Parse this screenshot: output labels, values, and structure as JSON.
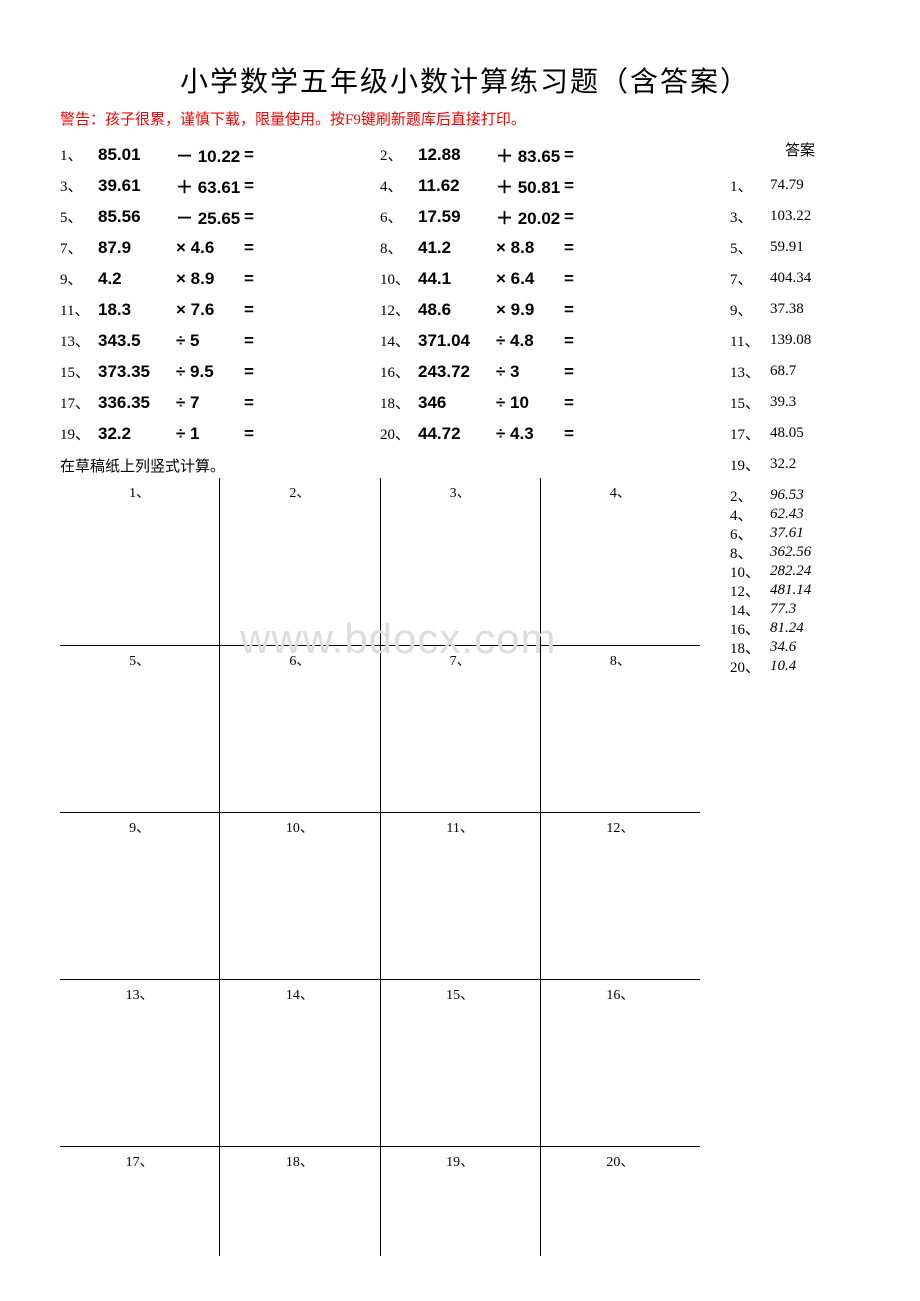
{
  "title": "小学数学五年级小数计算练习题（含答案）",
  "warning": "警告：孩子很累，谨慎下载，限量使用。按F9键刷新题库后直接打印。",
  "answers_title": "答案",
  "scratch_label": "在草稿纸上列竖式计算。",
  "watermark": "www.bdocx.com",
  "problems": [
    {
      "n": "1、",
      "a": "85.01",
      "op": "－ 10.22",
      "n2": "2、",
      "a2": "12.88",
      "op2": "＋ 83.65"
    },
    {
      "n": "3、",
      "a": "39.61",
      "op": "＋ 63.61",
      "n2": "4、",
      "a2": "11.62",
      "op2": "＋ 50.81"
    },
    {
      "n": "5、",
      "a": "85.56",
      "op": "－ 25.65",
      "n2": "6、",
      "a2": "17.59",
      "op2": "＋ 20.02"
    },
    {
      "n": "7、",
      "a": "87.9",
      "op": "× 4.6",
      "n2": "8、",
      "a2": "41.2",
      "op2": "× 8.8"
    },
    {
      "n": "9、",
      "a": "4.2",
      "op": "× 8.9",
      "n2": "10、",
      "a2": "44.1",
      "op2": "× 6.4"
    },
    {
      "n": "11、",
      "a": "18.3",
      "op": "× 7.6",
      "n2": "12、",
      "a2": "48.6",
      "op2": "× 9.9"
    },
    {
      "n": "13、",
      "a": "343.5",
      "op": "÷ 5",
      "n2": "14、",
      "a2": "371.04",
      "op2": "÷ 4.8"
    },
    {
      "n": "15、",
      "a": "373.35",
      "op": "÷ 9.5",
      "n2": "16、",
      "a2": "243.72",
      "op2": "÷ 3"
    },
    {
      "n": "17、",
      "a": "336.35",
      "op": "÷ 7",
      "n2": "18、",
      "a2": "346",
      "op2": "÷ 10"
    },
    {
      "n": "19、",
      "a": "32.2",
      "op": "÷ 1",
      "n2": "20、",
      "a2": "44.72",
      "op2": "÷ 4.3"
    }
  ],
  "answers1": [
    {
      "n": "1、",
      "v": "74.79"
    },
    {
      "n": "3、",
      "v": "103.22"
    },
    {
      "n": "5、",
      "v": "59.91"
    },
    {
      "n": "7、",
      "v": "404.34"
    },
    {
      "n": "9、",
      "v": "37.38"
    },
    {
      "n": "11、",
      "v": "139.08"
    },
    {
      "n": "13、",
      "v": "68.7"
    },
    {
      "n": "15、",
      "v": "39.3"
    },
    {
      "n": "17、",
      "v": "48.05"
    },
    {
      "n": "19、",
      "v": "32.2"
    }
  ],
  "answers2": [
    {
      "n": "2、",
      "v": "96.53"
    },
    {
      "n": "4、",
      "v": "62.43"
    },
    {
      "n": "6、",
      "v": "37.61"
    },
    {
      "n": "8、",
      "v": "362.56"
    },
    {
      "n": "10、",
      "v": "282.24"
    },
    {
      "n": "12、",
      "v": "481.14"
    },
    {
      "n": "14、",
      "v": "77.3"
    },
    {
      "n": "16、",
      "v": "81.24"
    },
    {
      "n": "18、",
      "v": "34.6"
    },
    {
      "n": "20、",
      "v": "10.4"
    }
  ],
  "grid": [
    [
      "1、",
      "2、",
      "3、",
      "4、"
    ],
    [
      "5、",
      "6、",
      "7、",
      "8、"
    ],
    [
      "9、",
      "10、",
      "11、",
      "12、"
    ],
    [
      "13、",
      "14、",
      "15、",
      "16、"
    ],
    [
      "17、",
      "18、",
      "19、",
      "20、"
    ]
  ],
  "equals": "="
}
